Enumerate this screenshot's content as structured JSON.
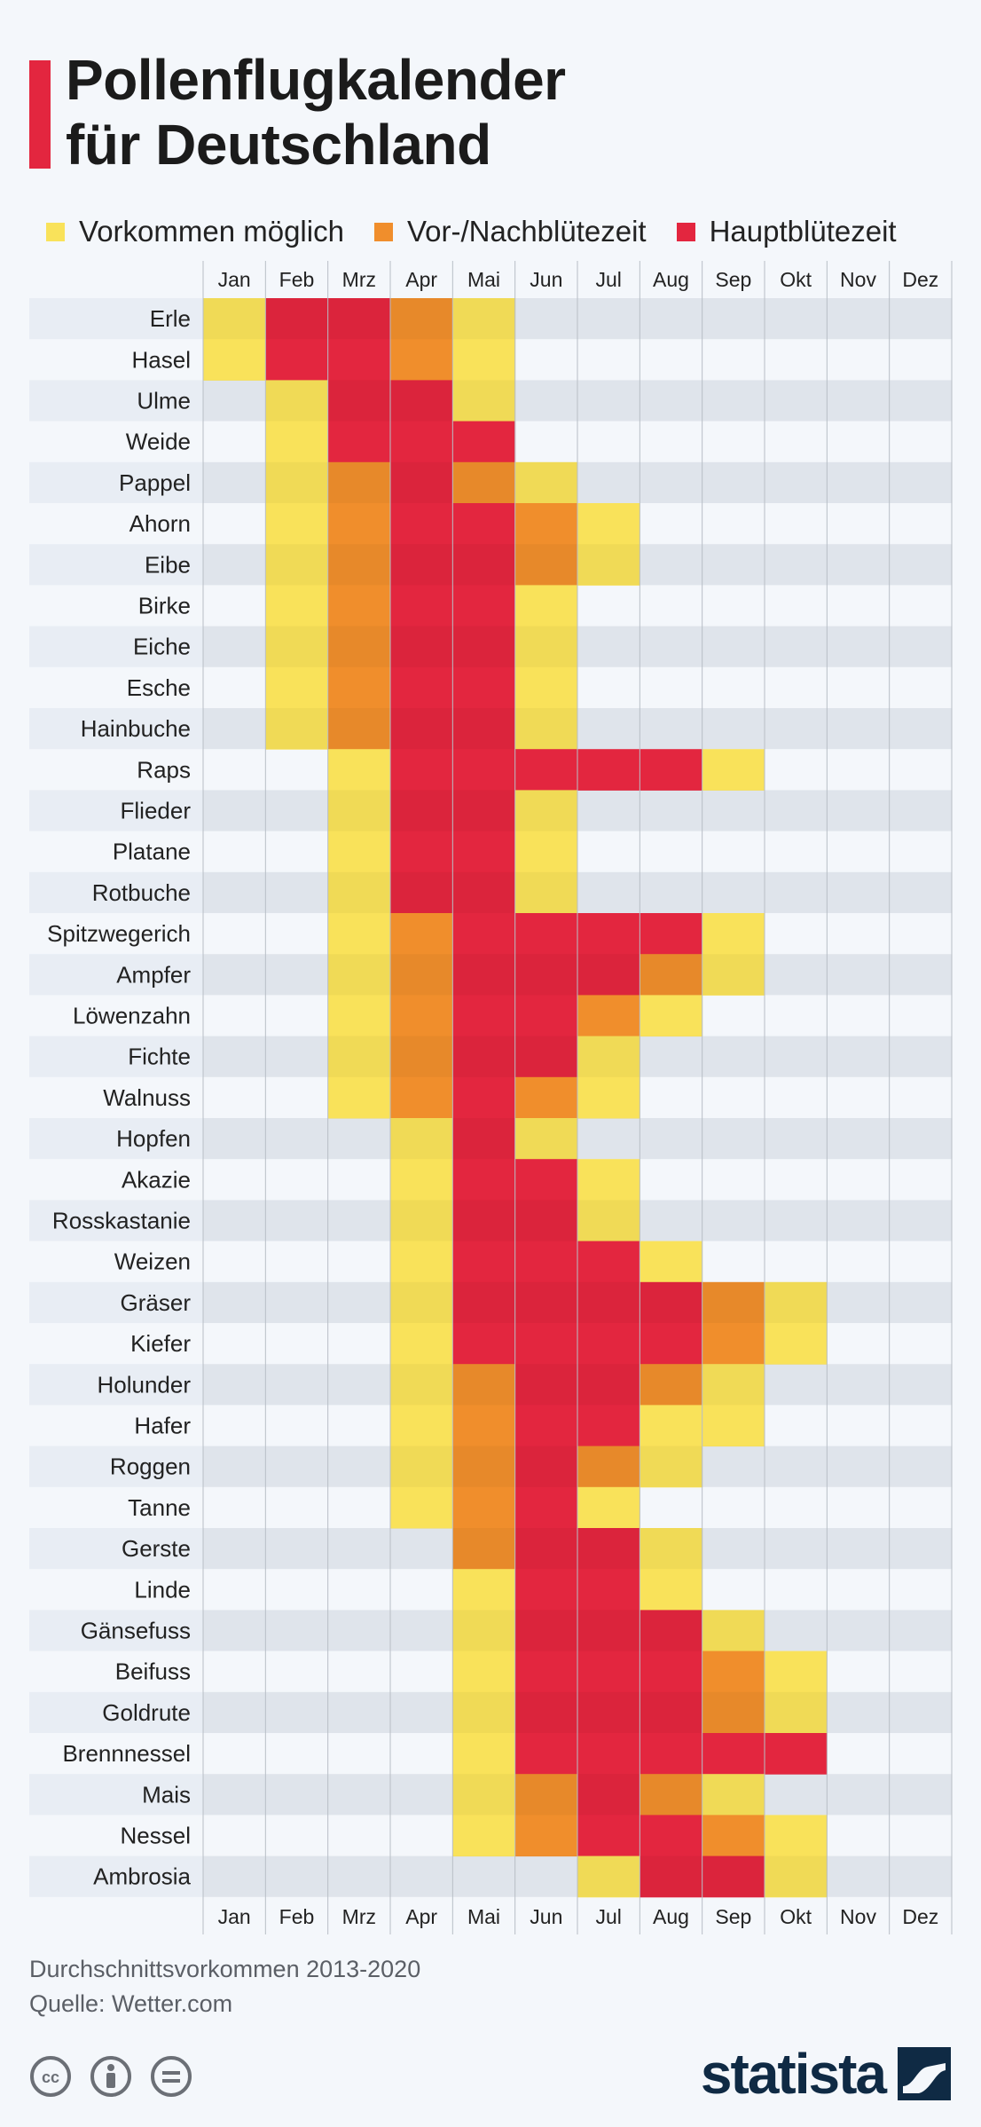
{
  "title": {
    "line1": "Pollenflugkalender",
    "line2": "für Deutschland"
  },
  "legend": [
    {
      "label": "Vorkommen möglich",
      "color": "#f9e25a"
    },
    {
      "label": "Vor-/Nachblütezeit",
      "color": "#f08e2c"
    },
    {
      "label": "Hauptblütezeit",
      "color": "#e3263f"
    }
  ],
  "notes": {
    "line1": "Durchschnittsvorkommen 2013-2020",
    "line2": "Quelle: Wetter.com"
  },
  "brand": {
    "name": "statista"
  },
  "icons": {
    "cc": "cc-icon",
    "by": "person-icon",
    "nd": "equals-icon"
  },
  "colors": {
    "row_stripe": "#e8edf4",
    "grid": "#b8bec6"
  },
  "chart_data": {
    "type": "heatmap",
    "months": [
      "Jan",
      "Feb",
      "Mrz",
      "Apr",
      "Mai",
      "Jun",
      "Jul",
      "Aug",
      "Sep",
      "Okt",
      "Nov",
      "Dez"
    ],
    "levels": {
      "0": "",
      "1": "Vorkommen möglich",
      "2": "Vor-/Nachblütezeit",
      "3": "Hauptblütezeit"
    },
    "rows": [
      {
        "name": "Erle",
        "values": [
          1,
          3,
          3,
          2,
          1,
          0,
          0,
          0,
          0,
          0,
          0,
          0
        ]
      },
      {
        "name": "Hasel",
        "values": [
          1,
          3,
          3,
          2,
          1,
          0,
          0,
          0,
          0,
          0,
          0,
          0
        ]
      },
      {
        "name": "Ulme",
        "values": [
          0,
          1,
          3,
          3,
          1,
          0,
          0,
          0,
          0,
          0,
          0,
          0
        ]
      },
      {
        "name": "Weide",
        "values": [
          0,
          1,
          3,
          3,
          3,
          0,
          0,
          0,
          0,
          0,
          0,
          0
        ]
      },
      {
        "name": "Pappel",
        "values": [
          0,
          1,
          2,
          3,
          2,
          1,
          0,
          0,
          0,
          0,
          0,
          0
        ]
      },
      {
        "name": "Ahorn",
        "values": [
          0,
          1,
          2,
          3,
          3,
          2,
          1,
          0,
          0,
          0,
          0,
          0
        ]
      },
      {
        "name": "Eibe",
        "values": [
          0,
          1,
          2,
          3,
          3,
          2,
          1,
          0,
          0,
          0,
          0,
          0
        ]
      },
      {
        "name": "Birke",
        "values": [
          0,
          1,
          2,
          3,
          3,
          1,
          0,
          0,
          0,
          0,
          0,
          0
        ]
      },
      {
        "name": "Eiche",
        "values": [
          0,
          1,
          2,
          3,
          3,
          1,
          0,
          0,
          0,
          0,
          0,
          0
        ]
      },
      {
        "name": "Esche",
        "values": [
          0,
          1,
          2,
          3,
          3,
          1,
          0,
          0,
          0,
          0,
          0,
          0
        ]
      },
      {
        "name": "Hainbuche",
        "values": [
          0,
          1,
          2,
          3,
          3,
          1,
          0,
          0,
          0,
          0,
          0,
          0
        ]
      },
      {
        "name": "Raps",
        "values": [
          0,
          0,
          1,
          3,
          3,
          3,
          3,
          3,
          1,
          0,
          0,
          0
        ]
      },
      {
        "name": "Flieder",
        "values": [
          0,
          0,
          1,
          3,
          3,
          1,
          0,
          0,
          0,
          0,
          0,
          0
        ]
      },
      {
        "name": "Platane",
        "values": [
          0,
          0,
          1,
          3,
          3,
          1,
          0,
          0,
          0,
          0,
          0,
          0
        ]
      },
      {
        "name": "Rotbuche",
        "values": [
          0,
          0,
          1,
          3,
          3,
          1,
          0,
          0,
          0,
          0,
          0,
          0
        ]
      },
      {
        "name": "Spitzwegerich",
        "values": [
          0,
          0,
          1,
          2,
          3,
          3,
          3,
          3,
          1,
          0,
          0,
          0
        ]
      },
      {
        "name": "Ampfer",
        "values": [
          0,
          0,
          1,
          2,
          3,
          3,
          3,
          2,
          1,
          0,
          0,
          0
        ]
      },
      {
        "name": "Löwenzahn",
        "values": [
          0,
          0,
          1,
          2,
          3,
          3,
          2,
          1,
          0,
          0,
          0,
          0
        ]
      },
      {
        "name": "Fichte",
        "values": [
          0,
          0,
          1,
          2,
          3,
          3,
          1,
          0,
          0,
          0,
          0,
          0
        ]
      },
      {
        "name": "Walnuss",
        "values": [
          0,
          0,
          1,
          2,
          3,
          2,
          1,
          0,
          0,
          0,
          0,
          0
        ]
      },
      {
        "name": "Hopfen",
        "values": [
          0,
          0,
          0,
          1,
          3,
          1,
          0,
          0,
          0,
          0,
          0,
          0
        ]
      },
      {
        "name": "Akazie",
        "values": [
          0,
          0,
          0,
          1,
          3,
          3,
          1,
          0,
          0,
          0,
          0,
          0
        ]
      },
      {
        "name": "Rosskastanie",
        "values": [
          0,
          0,
          0,
          1,
          3,
          3,
          1,
          0,
          0,
          0,
          0,
          0
        ]
      },
      {
        "name": "Weizen",
        "values": [
          0,
          0,
          0,
          1,
          3,
          3,
          3,
          1,
          0,
          0,
          0,
          0
        ]
      },
      {
        "name": "Gräser",
        "values": [
          0,
          0,
          0,
          1,
          3,
          3,
          3,
          3,
          2,
          1,
          0,
          0
        ]
      },
      {
        "name": "Kiefer",
        "values": [
          0,
          0,
          0,
          1,
          3,
          3,
          3,
          3,
          2,
          1,
          0,
          0
        ]
      },
      {
        "name": "Holunder",
        "values": [
          0,
          0,
          0,
          1,
          2,
          3,
          3,
          2,
          1,
          0,
          0,
          0
        ]
      },
      {
        "name": "Hafer",
        "values": [
          0,
          0,
          0,
          1,
          2,
          3,
          3,
          1,
          1,
          0,
          0,
          0
        ]
      },
      {
        "name": "Roggen",
        "values": [
          0,
          0,
          0,
          1,
          2,
          3,
          2,
          1,
          0,
          0,
          0,
          0
        ]
      },
      {
        "name": "Tanne",
        "values": [
          0,
          0,
          0,
          1,
          2,
          3,
          1,
          0,
          0,
          0,
          0,
          0
        ]
      },
      {
        "name": "Gerste",
        "values": [
          0,
          0,
          0,
          0,
          2,
          3,
          3,
          1,
          0,
          0,
          0,
          0
        ]
      },
      {
        "name": "Linde",
        "values": [
          0,
          0,
          0,
          0,
          1,
          3,
          3,
          1,
          0,
          0,
          0,
          0
        ]
      },
      {
        "name": "Gänsefuss",
        "values": [
          0,
          0,
          0,
          0,
          1,
          3,
          3,
          3,
          1,
          0,
          0,
          0
        ]
      },
      {
        "name": "Beifuss",
        "values": [
          0,
          0,
          0,
          0,
          1,
          3,
          3,
          3,
          2,
          1,
          0,
          0
        ]
      },
      {
        "name": "Goldrute",
        "values": [
          0,
          0,
          0,
          0,
          1,
          3,
          3,
          3,
          2,
          1,
          0,
          0
        ]
      },
      {
        "name": "Brennnessel",
        "values": [
          0,
          0,
          0,
          0,
          1,
          3,
          3,
          3,
          3,
          3,
          0,
          0
        ]
      },
      {
        "name": "Mais",
        "values": [
          0,
          0,
          0,
          0,
          1,
          2,
          3,
          2,
          1,
          0,
          0,
          0
        ]
      },
      {
        "name": "Nessel",
        "values": [
          0,
          0,
          0,
          0,
          1,
          2,
          3,
          3,
          2,
          1,
          0,
          0
        ]
      },
      {
        "name": "Ambrosia",
        "values": [
          0,
          0,
          0,
          0,
          0,
          0,
          1,
          3,
          3,
          1,
          0,
          0
        ]
      }
    ]
  }
}
